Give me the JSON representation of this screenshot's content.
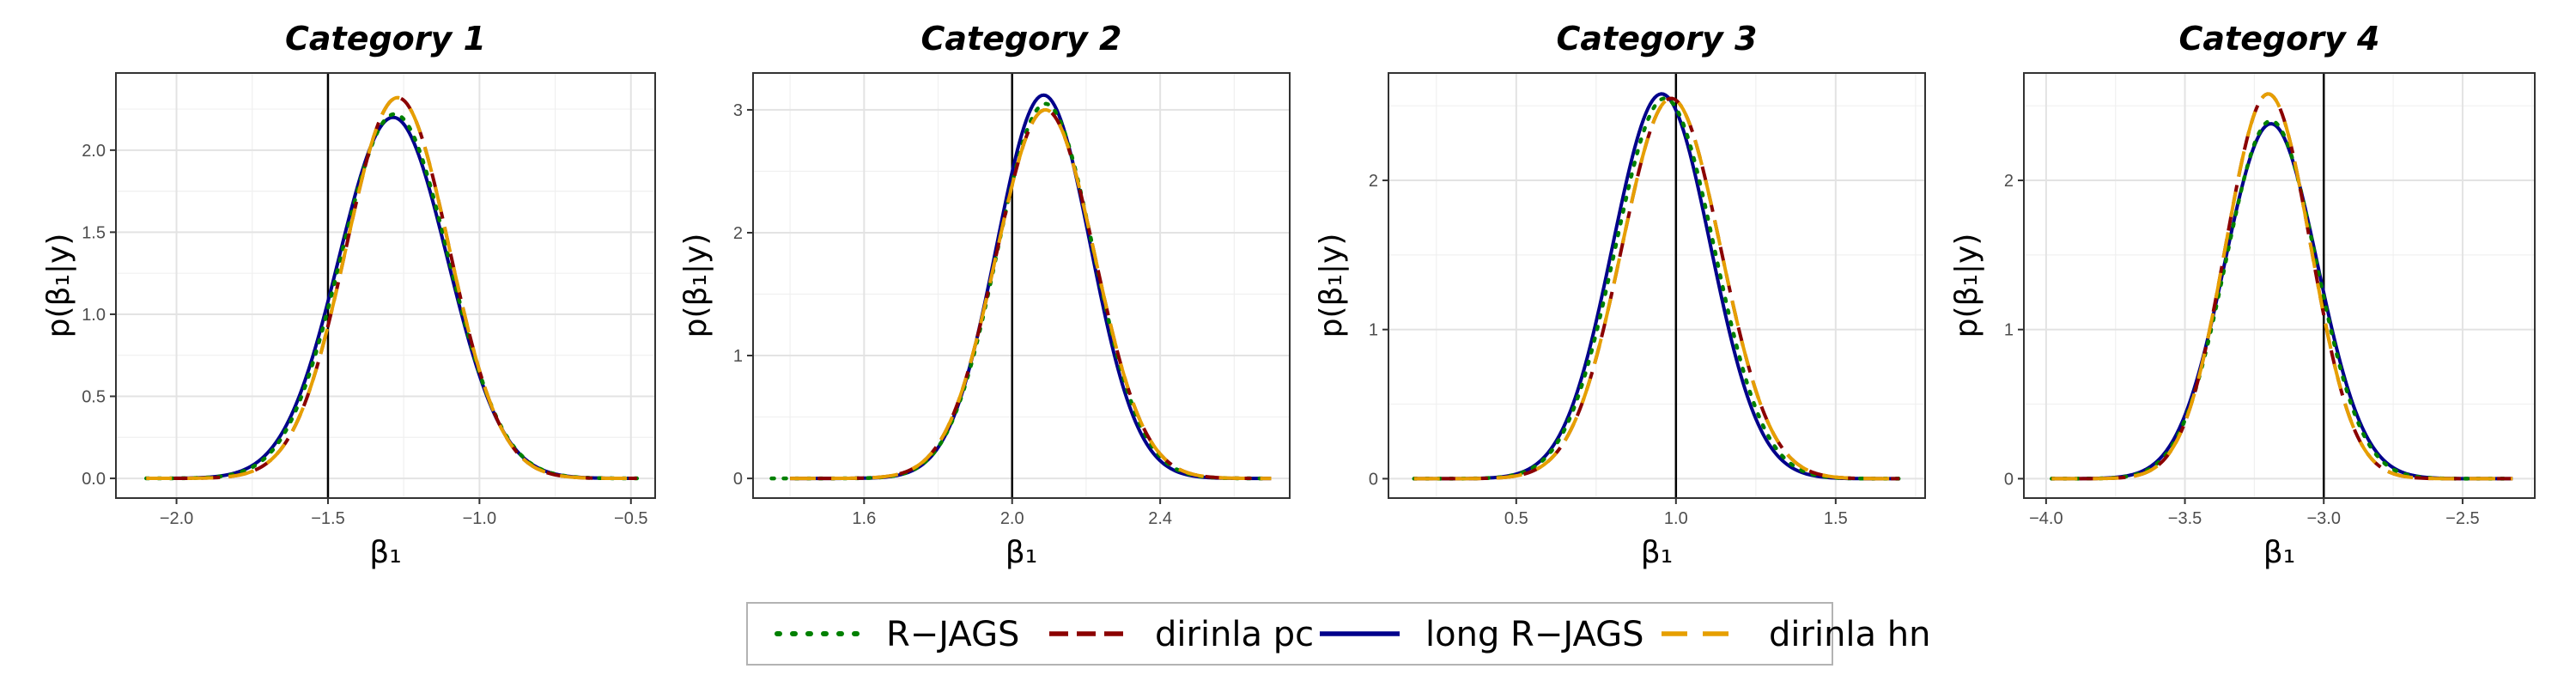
{
  "chart_data": [
    {
      "type": "line",
      "title": "Category 1",
      "xlabel": "β₁",
      "ylabel": "p(β₁|y)",
      "xlim": [
        -2.2,
        -0.42
      ],
      "ylim": [
        -0.12,
        2.47
      ],
      "xticks": [
        -2.0,
        -1.5,
        -1.0,
        -0.5
      ],
      "xtick_labels": [
        "−2.0",
        "−1.5",
        "−1.0",
        "−0.5"
      ],
      "yticks": [
        0.0,
        0.5,
        1.0,
        1.5,
        2.0
      ],
      "ytick_labels": [
        "0.0",
        "0.5",
        "1.0",
        "1.5",
        "2.0"
      ],
      "vline": -1.5,
      "x_range": [
        -2.1,
        -0.48
      ],
      "grid": true,
      "series": [
        {
          "name": "R−JAGS",
          "mean": -1.28,
          "sd": 0.178,
          "peak": 2.22
        },
        {
          "name": "dirinla pc",
          "mean": -1.27,
          "sd": 0.17,
          "peak": 2.32
        },
        {
          "name": "long R−JAGS",
          "mean": -1.285,
          "sd": 0.18,
          "peak": 2.2
        },
        {
          "name": "dirinla hn",
          "mean": -1.27,
          "sd": 0.17,
          "peak": 2.32
        }
      ]
    },
    {
      "type": "line",
      "title": "Category 2",
      "xlabel": "β₁",
      "ylabel": "p(β₁|y)",
      "xlim": [
        1.3,
        2.75
      ],
      "ylim": [
        -0.16,
        3.3
      ],
      "xticks": [
        1.6,
        2.0,
        2.4
      ],
      "xtick_labels": [
        "1.6",
        "2.0",
        "2.4"
      ],
      "yticks": [
        0,
        1,
        2,
        3
      ],
      "ytick_labels": [
        "0",
        "1",
        "2",
        "3"
      ],
      "vline": 2.0,
      "x_range": [
        1.4,
        2.7
      ],
      "grid": true,
      "series": [
        {
          "name": "R−JAGS",
          "mean": 2.09,
          "sd": 0.13,
          "peak": 3.05,
          "x_start": 1.35
        },
        {
          "name": "dirinla pc",
          "mean": 2.09,
          "sd": 0.133,
          "peak": 3.0
        },
        {
          "name": "long R−JAGS",
          "mean": 2.085,
          "sd": 0.127,
          "peak": 3.12
        },
        {
          "name": "dirinla hn",
          "mean": 2.09,
          "sd": 0.133,
          "peak": 3.0
        }
      ]
    },
    {
      "type": "line",
      "title": "Category 3",
      "xlabel": "β₁",
      "ylabel": "p(β₁|y)",
      "xlim": [
        0.1,
        1.78
      ],
      "ylim": [
        -0.13,
        2.72
      ],
      "xticks": [
        0.5,
        1.0,
        1.5
      ],
      "xtick_labels": [
        "0.5",
        "1.0",
        "1.5"
      ],
      "yticks": [
        0,
        1,
        2
      ],
      "ytick_labels": [
        "0",
        "1",
        "2"
      ],
      "vline": 1.0,
      "x_range": [
        0.18,
        1.7
      ],
      "grid": true,
      "series": [
        {
          "name": "R−JAGS",
          "mean": 0.965,
          "sd": 0.155,
          "peak": 2.55
        },
        {
          "name": "dirinla pc",
          "mean": 0.985,
          "sd": 0.155,
          "peak": 2.55
        },
        {
          "name": "long R−JAGS",
          "mean": 0.955,
          "sd": 0.153,
          "peak": 2.58
        },
        {
          "name": "dirinla hn",
          "mean": 0.985,
          "sd": 0.155,
          "peak": 2.55
        }
      ]
    },
    {
      "type": "line",
      "title": "Category 4",
      "xlabel": "β₁",
      "ylabel": "p(β₁|y)",
      "xlim": [
        -4.08,
        -2.24
      ],
      "ylim": [
        -0.13,
        2.72
      ],
      "xticks": [
        -4.0,
        -3.5,
        -3.0,
        -2.5
      ],
      "xtick_labels": [
        "−4.0",
        "−3.5",
        "−3.0",
        "−2.5"
      ],
      "yticks": [
        0,
        1,
        2
      ],
      "ytick_labels": [
        "0",
        "1",
        "2"
      ],
      "vline": -3.0,
      "x_range": [
        -3.98,
        -2.32
      ],
      "grid": true,
      "series": [
        {
          "name": "R−JAGS",
          "mean": -3.19,
          "sd": 0.163,
          "peak": 2.4
        },
        {
          "name": "dirinla pc",
          "mean": -3.2,
          "sd": 0.153,
          "peak": 2.58
        },
        {
          "name": "long R−JAGS",
          "mean": -3.19,
          "sd": 0.167,
          "peak": 2.38
        },
        {
          "name": "dirinla hn",
          "mean": -3.2,
          "sd": 0.153,
          "peak": 2.58
        }
      ]
    }
  ],
  "legend": {
    "position": "bottom",
    "items": [
      {
        "label": "R−JAGS",
        "color": "#008000",
        "dash": "dotted"
      },
      {
        "label": "dirinla pc",
        "color": "#8b0000",
        "dash": "dashed"
      },
      {
        "label": "long R−JAGS",
        "color": "#00008b",
        "dash": "solid"
      },
      {
        "label": "dirinla hn",
        "color": "#e69f00",
        "dash": "longdash"
      }
    ]
  }
}
